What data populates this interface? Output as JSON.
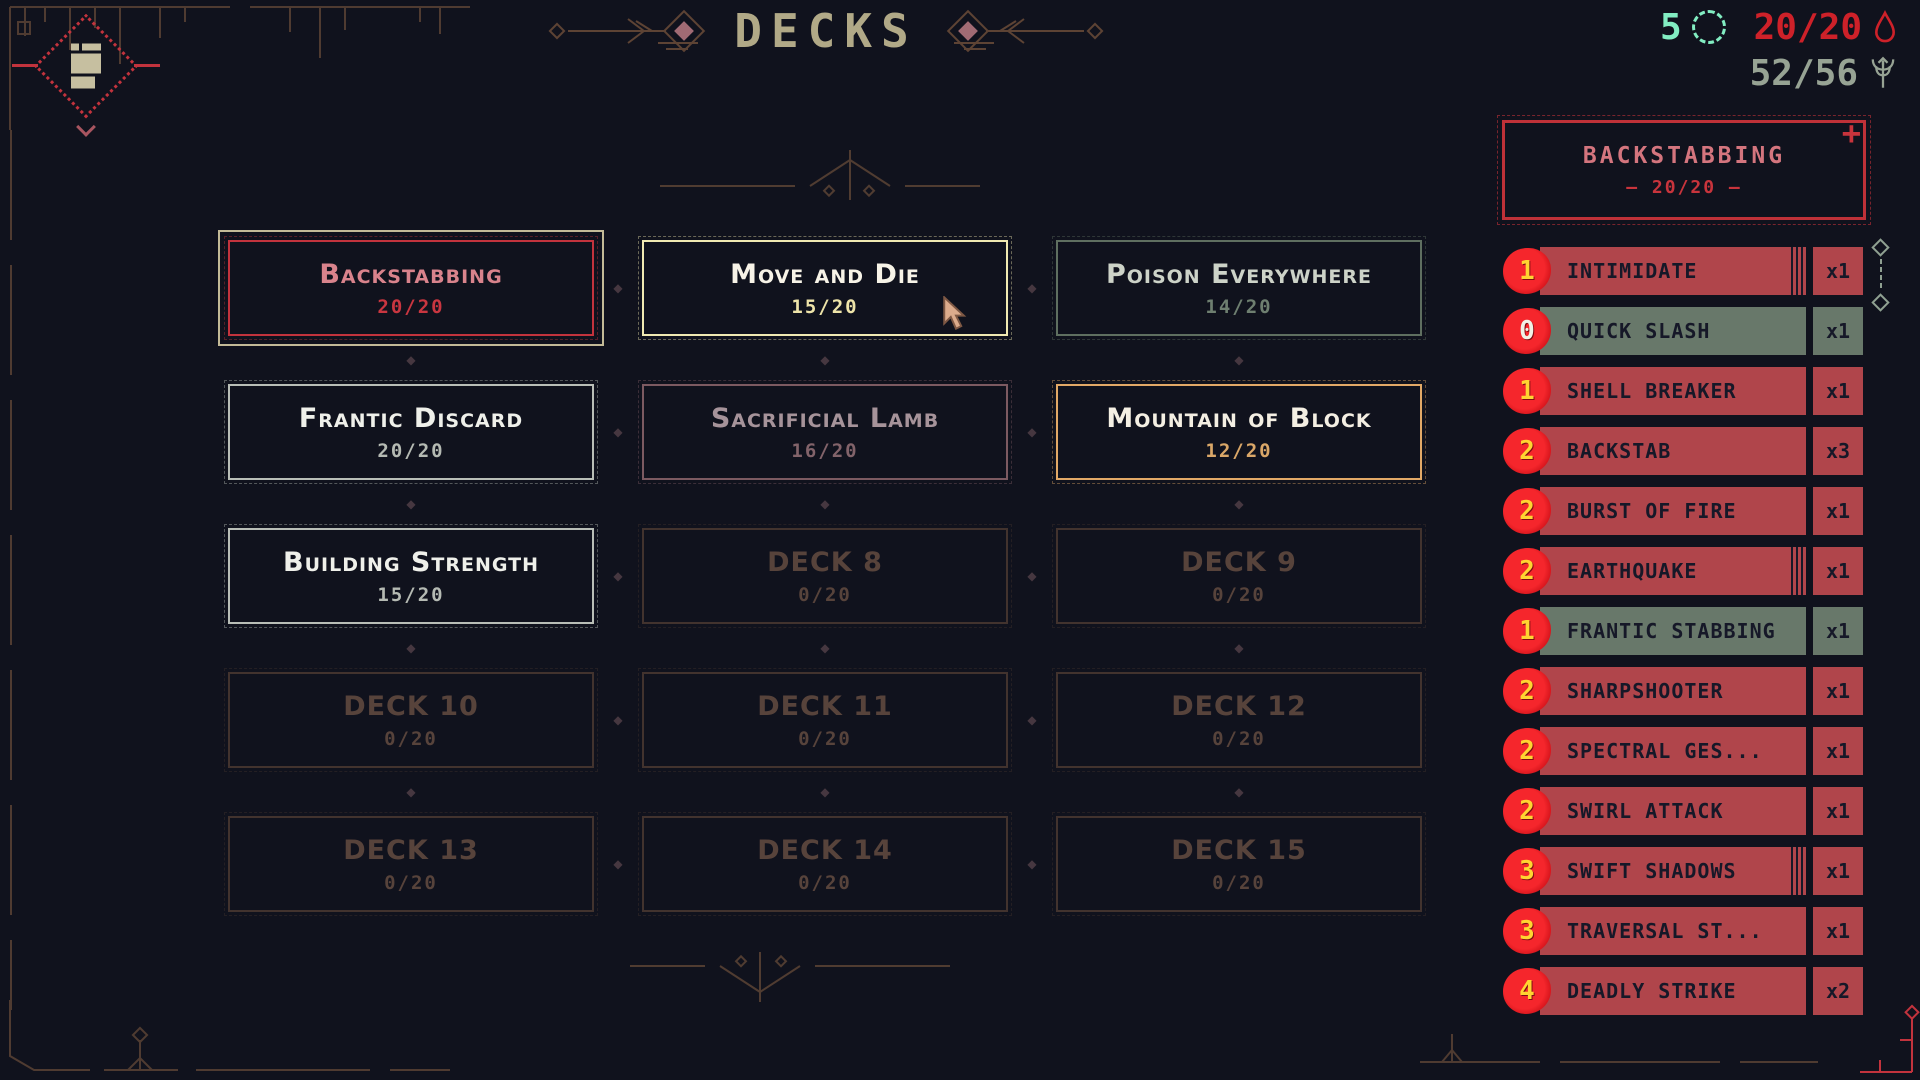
{
  "app": {
    "title": "DECKS"
  },
  "stats": {
    "energy": {
      "value": "5",
      "icon": "energy-orb-icon",
      "color": "#82edc2"
    },
    "health": {
      "value": "20/20",
      "icon": "blood-drop-icon",
      "color": "#ce2129"
    },
    "cards": {
      "value": "52/56",
      "icon": "card-collection-icon",
      "color": "#97a394"
    }
  },
  "deck_grid": {
    "items": [
      {
        "name": "Backstabbing",
        "count": "20/20",
        "variant": "selected"
      },
      {
        "name": "Move and Die",
        "count": "15/20",
        "variant": "hover"
      },
      {
        "name": "Poison Everywhere",
        "count": "14/20",
        "variant": "teal"
      },
      {
        "name": "Frantic Discard",
        "count": "20/20",
        "variant": "light"
      },
      {
        "name": "Sacrificial Lamb",
        "count": "16/20",
        "variant": "mauve"
      },
      {
        "name": "Mountain of Block",
        "count": "12/20",
        "variant": "orange"
      },
      {
        "name": "Building Strength",
        "count": "15/20",
        "variant": "light"
      },
      {
        "name": "DECK 8",
        "count": "0/20",
        "variant": "empty"
      },
      {
        "name": "DECK 9",
        "count": "0/20",
        "variant": "empty"
      },
      {
        "name": "DECK 10",
        "count": "0/20",
        "variant": "empty"
      },
      {
        "name": "DECK 11",
        "count": "0/20",
        "variant": "empty"
      },
      {
        "name": "DECK 12",
        "count": "0/20",
        "variant": "empty"
      },
      {
        "name": "DECK 13",
        "count": "0/20",
        "variant": "empty"
      },
      {
        "name": "DECK 14",
        "count": "0/20",
        "variant": "empty"
      },
      {
        "name": "DECK 15",
        "count": "0/20",
        "variant": "empty"
      }
    ]
  },
  "current_deck": {
    "name": "BACKSTABBING",
    "count": "20/20",
    "count_line": "–  20/20  –",
    "add_button": "+",
    "cards": [
      {
        "cost": "1",
        "name": "INTIMIDATE",
        "qty": "x1",
        "type": "attack",
        "striped": true
      },
      {
        "cost": "0",
        "name": "QUICK SLASH",
        "qty": "x1",
        "type": "skill",
        "striped": false
      },
      {
        "cost": "1",
        "name": "SHELL BREAKER",
        "qty": "x1",
        "type": "attack",
        "striped": false
      },
      {
        "cost": "2",
        "name": "BACKSTAB",
        "qty": "x3",
        "type": "attack",
        "striped": false
      },
      {
        "cost": "2",
        "name": "BURST OF FIRE",
        "qty": "x1",
        "type": "attack",
        "striped": false
      },
      {
        "cost": "2",
        "name": "EARTHQUAKE",
        "qty": "x1",
        "type": "attack",
        "striped": true
      },
      {
        "cost": "1",
        "name": "FRANTIC STABBING",
        "qty": "x1",
        "type": "skill",
        "striped": false
      },
      {
        "cost": "2",
        "name": "SHARPSHOOTER",
        "qty": "x1",
        "type": "attack",
        "striped": false
      },
      {
        "cost": "2",
        "name": "SPECTRAL GES...",
        "qty": "x1",
        "type": "attack",
        "striped": false
      },
      {
        "cost": "2",
        "name": "SWIRL ATTACK",
        "qty": "x1",
        "type": "attack",
        "striped": false
      },
      {
        "cost": "3",
        "name": "SWIFT SHADOWS",
        "qty": "x1",
        "type": "attack",
        "striped": true
      },
      {
        "cost": "3",
        "name": "TRAVERSAL ST...",
        "qty": "x1",
        "type": "attack",
        "striped": false
      },
      {
        "cost": "4",
        "name": "DEADLY STRIKE",
        "qty": "x2",
        "type": "attack",
        "striped": false
      }
    ]
  },
  "decor": {
    "gap_ornament_glyph": "◆"
  },
  "palette": {
    "background": "#10121d",
    "ornament_brown": "#4f3b31",
    "title_beige": "#b1a987",
    "accent_red": "#c2333d",
    "card_attack_bar": "#b0454b",
    "card_skill_bar": "#68786a",
    "cost_yellow": "#ffd431",
    "energy_mint": "#82edc2",
    "collection_gray": "#97a394"
  }
}
